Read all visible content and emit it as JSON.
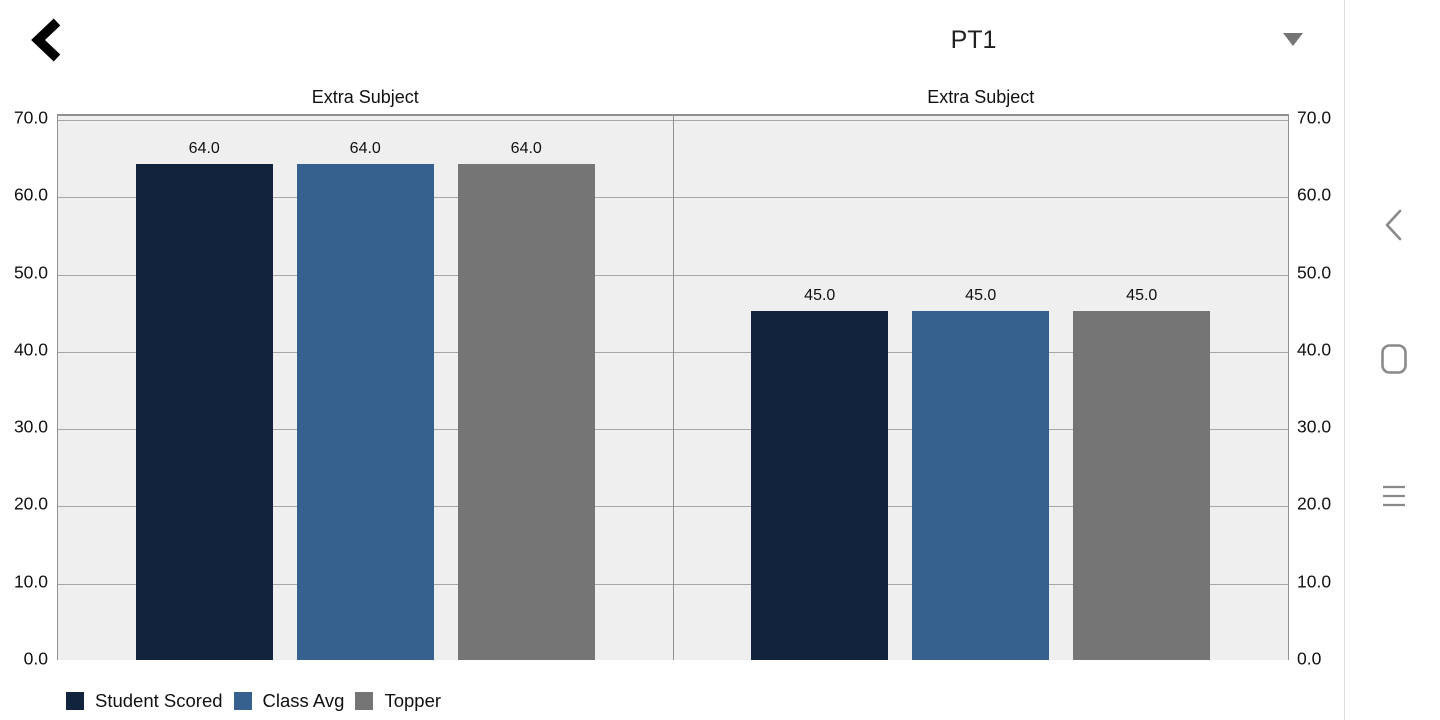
{
  "header": {
    "back_button": {
      "icon": "back-arrow-icon"
    },
    "exam_selector": {
      "value": "PT1",
      "icon": "caret-down-icon"
    }
  },
  "chart_data": {
    "type": "bar",
    "categories": [
      "Extra Subject",
      "Extra Subject"
    ],
    "series": [
      {
        "name": "Student Scored",
        "color": "#12233E",
        "values": [
          64.0,
          45.0
        ]
      },
      {
        "name": "Class Avg",
        "color": "#36618E",
        "values": [
          64.0,
          45.0
        ]
      },
      {
        "name": "Topper",
        "color": "#757575",
        "values": [
          64.0,
          45.0
        ]
      }
    ],
    "ylim": [
      0,
      70
    ],
    "yticks": [
      70,
      60,
      50,
      40,
      30,
      20,
      10,
      0
    ],
    "tick_decimals": 1,
    "value_label_decimals": 1,
    "grid": true,
    "dual_y_axis": true,
    "legend_position": "bottom-left",
    "plot_background": "#EFEFEF",
    "gridline_color": "#A6A6A6",
    "border_color": "#909090"
  },
  "nav_bar": {
    "back_icon": "nav-back-icon",
    "home_icon": "nav-home-icon",
    "recents_icon": "nav-recents-icon",
    "icon_color": "#8A8A8A"
  }
}
